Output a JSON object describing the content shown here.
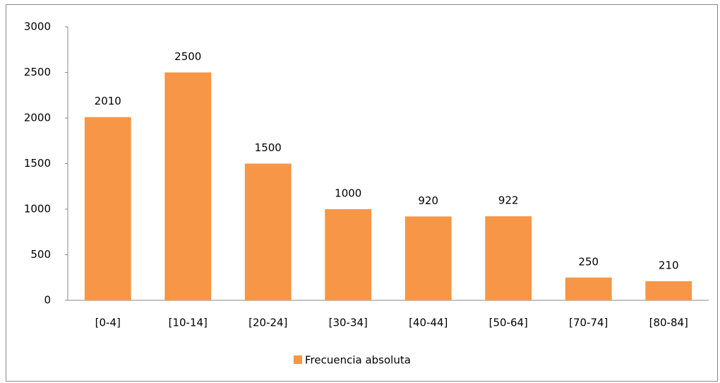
{
  "chart_data": {
    "type": "bar",
    "categories": [
      "[0-4]",
      "[10-14]",
      "[20-24]",
      "[30-34]",
      "[40-44]",
      "[50-64]",
      "[70-74]",
      "[80-84]"
    ],
    "series": [
      {
        "name": "Frecuencia absoluta",
        "color": "#f79646",
        "values": [
          2010,
          2500,
          1500,
          1000,
          920,
          922,
          250,
          210
        ]
      }
    ],
    "ylim": [
      0,
      3000
    ],
    "yticks": [
      0,
      500,
      1000,
      1500,
      2000,
      2500,
      3000
    ],
    "grid": false,
    "legend": "bottom"
  }
}
